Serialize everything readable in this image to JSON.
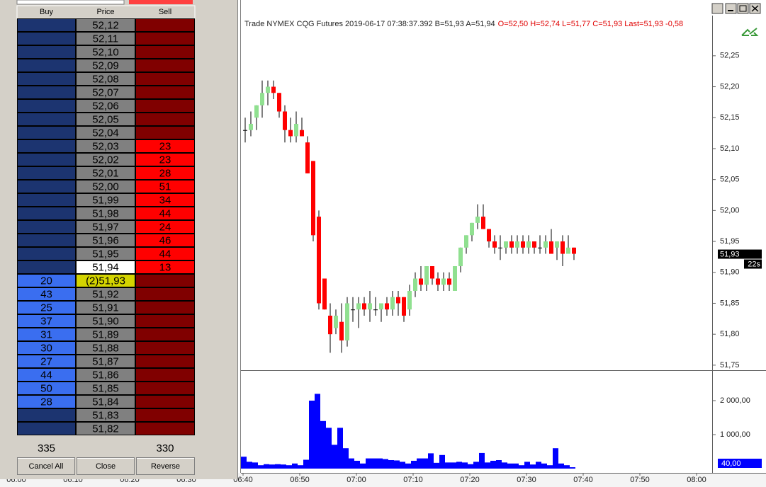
{
  "ladder": {
    "columns": [
      "Buy",
      "Price",
      "Sell"
    ],
    "rows": [
      {
        "price": "52,12"
      },
      {
        "price": "52,11"
      },
      {
        "price": "52,10"
      },
      {
        "price": "52,09"
      },
      {
        "price": "52,08"
      },
      {
        "price": "52,07"
      },
      {
        "price": "52,06"
      },
      {
        "price": "52,05"
      },
      {
        "price": "52,04"
      },
      {
        "price": "52,03",
        "sell": 23
      },
      {
        "price": "52,02",
        "sell": 23
      },
      {
        "price": "52,01",
        "sell": 28
      },
      {
        "price": "52,00",
        "sell": 51
      },
      {
        "price": "51,99",
        "sell": 34
      },
      {
        "price": "51,98",
        "sell": 44
      },
      {
        "price": "51,97",
        "sell": 24
      },
      {
        "price": "51,96",
        "sell": 46
      },
      {
        "price": "51,95",
        "sell": 44
      },
      {
        "price": "51,94",
        "sell": 13
      },
      {
        "price": "(2)51,93",
        "buy": 20
      },
      {
        "price": "51,92",
        "buy": 43
      },
      {
        "price": "51,91",
        "buy": 25
      },
      {
        "price": "51,90",
        "buy": 37
      },
      {
        "price": "51,89",
        "buy": 31
      },
      {
        "price": "51,88",
        "buy": 30
      },
      {
        "price": "51,87",
        "buy": 27
      },
      {
        "price": "51,86",
        "buy": 44
      },
      {
        "price": "51,85",
        "buy": 50
      },
      {
        "price": "51,84",
        "buy": 28
      },
      {
        "price": "51,83"
      },
      {
        "price": "51,82"
      }
    ],
    "buy_total": 335,
    "sell_total": 330,
    "buttons": [
      "Cancel All",
      "Close",
      "Reverse"
    ]
  },
  "chart_header": {
    "info": "Trade  NYMEX  CQG  Futures  2019-06-17  07:38:37.392  B=51,93  A=51,94",
    "ohlc": "O=52,50  H=52,74  L=51,77  C=51,93  Last=51,93  -0,58"
  },
  "chart_data": [
    {
      "type": "candlestick",
      "x": [
        "06:40",
        "06:41",
        "06:42",
        "06:43",
        "06:44",
        "06:45",
        "06:46",
        "06:47",
        "06:48",
        "06:49",
        "06:50",
        "06:51",
        "06:52",
        "06:53",
        "06:54",
        "06:55",
        "06:56",
        "06:57",
        "06:58",
        "06:59",
        "07:00",
        "07:01",
        "07:02",
        "07:03",
        "07:04",
        "07:05",
        "07:06",
        "07:07",
        "07:08",
        "07:09",
        "07:10",
        "07:11",
        "07:12",
        "07:13",
        "07:14",
        "07:15",
        "07:16",
        "07:17",
        "07:18",
        "07:19",
        "07:20",
        "07:21",
        "07:22",
        "07:23",
        "07:24",
        "07:25",
        "07:26",
        "07:27",
        "07:28",
        "07:29",
        "07:30",
        "07:31",
        "07:32",
        "07:33",
        "07:34",
        "07:35",
        "07:36",
        "07:37",
        "07:38"
      ],
      "open": [
        52.13,
        52.13,
        52.15,
        52.17,
        52.19,
        52.2,
        52.19,
        52.16,
        52.13,
        52.12,
        52.13,
        52.11,
        52.08,
        51.99,
        51.89,
        51.83,
        51.81,
        51.82,
        51.79,
        51.84,
        51.84,
        51.85,
        51.84,
        51.84,
        51.84,
        51.85,
        51.84,
        51.86,
        51.86,
        51.84,
        51.87,
        51.89,
        51.88,
        51.91,
        51.89,
        51.88,
        51.89,
        51.87,
        51.91,
        51.94,
        51.96,
        51.98,
        51.99,
        51.97,
        51.95,
        51.94,
        51.94,
        51.95,
        51.94,
        51.95,
        51.94,
        51.95,
        51.94,
        51.94,
        51.95,
        51.94,
        51.95,
        51.93,
        51.94
      ],
      "high": [
        52.15,
        52.16,
        52.17,
        52.21,
        52.21,
        52.21,
        52.19,
        52.17,
        52.15,
        52.16,
        52.15,
        52.12,
        52.08,
        52.0,
        51.89,
        51.85,
        51.84,
        51.85,
        51.86,
        51.86,
        51.86,
        51.86,
        51.87,
        51.86,
        51.85,
        51.86,
        51.87,
        51.87,
        51.86,
        51.88,
        51.9,
        51.91,
        51.91,
        51.91,
        51.9,
        51.9,
        51.9,
        51.91,
        51.94,
        51.96,
        51.98,
        52.01,
        52.01,
        51.97,
        51.96,
        51.96,
        51.95,
        51.96,
        51.96,
        51.96,
        51.96,
        51.95,
        51.96,
        51.96,
        51.97,
        51.95,
        51.96,
        51.96,
        51.94
      ],
      "low": [
        52.11,
        52.12,
        52.13,
        52.15,
        52.17,
        52.18,
        52.15,
        52.11,
        52.11,
        52.11,
        52.12,
        52.06,
        51.95,
        51.84,
        51.84,
        51.77,
        51.8,
        51.77,
        51.78,
        51.82,
        51.81,
        51.83,
        51.82,
        51.83,
        51.82,
        51.83,
        51.83,
        51.83,
        51.82,
        51.83,
        51.86,
        51.87,
        51.87,
        51.88,
        51.87,
        51.87,
        51.87,
        51.87,
        51.9,
        51.93,
        51.95,
        51.97,
        51.97,
        51.94,
        51.93,
        51.92,
        51.93,
        51.93,
        51.93,
        51.93,
        51.93,
        51.93,
        51.93,
        51.93,
        51.93,
        51.92,
        51.91,
        51.93,
        51.92
      ],
      "close": [
        52.13,
        52.14,
        52.17,
        52.19,
        52.2,
        52.19,
        52.16,
        52.13,
        52.12,
        52.14,
        52.12,
        52.06,
        51.96,
        51.85,
        51.84,
        51.8,
        51.83,
        51.79,
        51.85,
        51.84,
        51.85,
        51.84,
        51.85,
        51.84,
        51.85,
        51.84,
        51.86,
        51.85,
        51.83,
        51.87,
        51.89,
        51.88,
        51.91,
        51.89,
        51.88,
        51.89,
        51.88,
        51.91,
        51.94,
        51.96,
        51.98,
        51.99,
        51.97,
        51.95,
        51.94,
        51.94,
        51.95,
        51.94,
        51.95,
        51.94,
        51.95,
        51.94,
        51.94,
        51.95,
        51.93,
        51.95,
        51.93,
        51.94,
        51.93
      ],
      "up_color": "#90e090",
      "down_color": "#ff0000",
      "ylim": [
        51.743,
        52.315
      ],
      "yticks": [
        {
          "value": 52.25,
          "label": "52,25"
        },
        {
          "value": 52.2,
          "label": "52,20"
        },
        {
          "value": 52.15,
          "label": "52,15"
        },
        {
          "value": 52.1,
          "label": "52,10"
        },
        {
          "value": 52.05,
          "label": "52,05"
        },
        {
          "value": 52,
          "label": "52,00"
        },
        {
          "value": 51.95,
          "label": "51,95"
        },
        {
          "value": 51.9,
          "label": "51,90"
        },
        {
          "value": 51.85,
          "label": "51,85"
        },
        {
          "value": 51.8,
          "label": "51,80"
        },
        {
          "value": 51.75,
          "label": "51,75"
        }
      ],
      "xticks": [
        "06:00",
        "06:10",
        "06:20",
        "06:30",
        "06:40",
        "06:50",
        "07:00",
        "07:10",
        "07:20",
        "07:30",
        "07:40",
        "07:50",
        "08:00"
      ],
      "last_label": {
        "value": 51.93,
        "label": "51,93"
      },
      "timer": "22s"
    },
    {
      "type": "bar",
      "values": [
        350,
        200,
        180,
        100,
        130,
        120,
        130,
        120,
        100,
        150,
        100,
        260,
        2000,
        2200,
        1400,
        1200,
        700,
        1200,
        600,
        300,
        230,
        150,
        300,
        300,
        300,
        280,
        250,
        240,
        200,
        150,
        230,
        300,
        300,
        450,
        170,
        400,
        180,
        180,
        200,
        180,
        130,
        200,
        460,
        180,
        230,
        250,
        180,
        150,
        150,
        100,
        200,
        120,
        200,
        150,
        100,
        600,
        150,
        100,
        40
      ],
      "color": "#0000ff",
      "ylim": [
        0,
        2812
      ],
      "yticks": [
        {
          "value": 2000,
          "label": "2 000,00"
        },
        {
          "value": 1000,
          "label": "1 000,00"
        }
      ],
      "last_label": {
        "value": 40,
        "label": "40,00"
      }
    }
  ]
}
